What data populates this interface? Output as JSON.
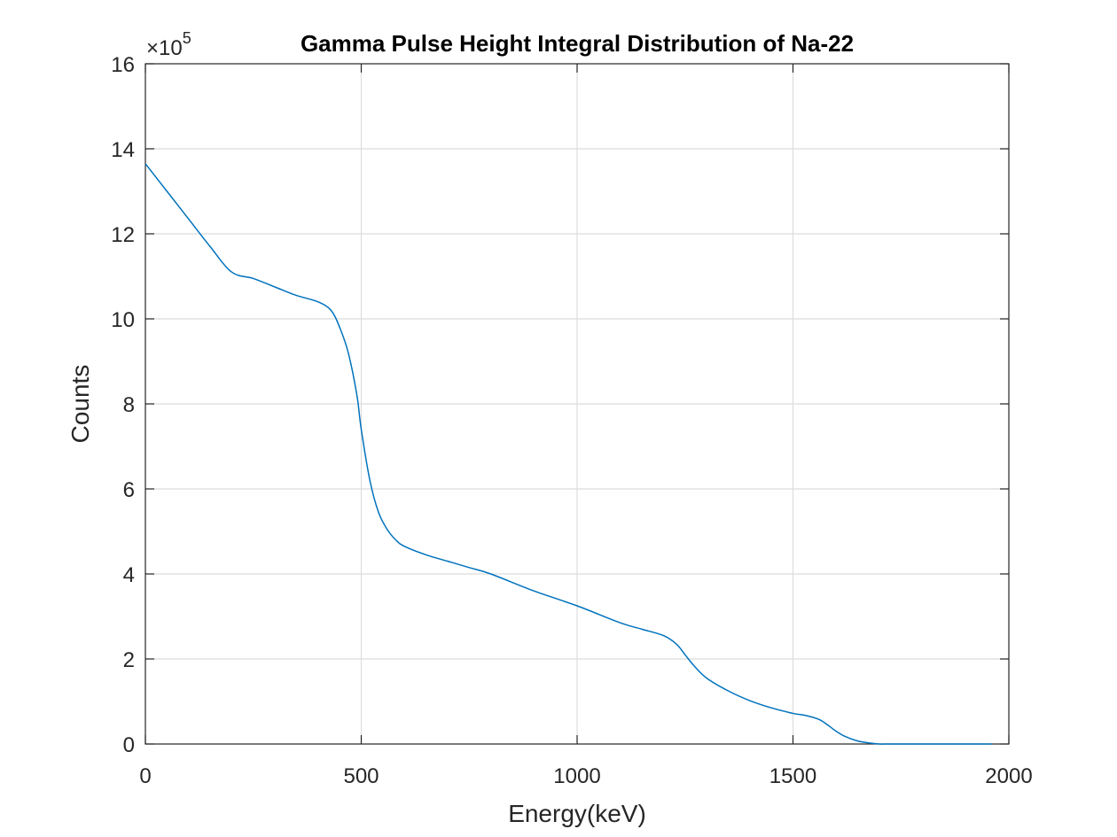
{
  "chart_data": {
    "type": "line",
    "title": "Gamma Pulse Height Integral Distribution of Na-22",
    "xlabel": "Energy(keV)",
    "ylabel": "Counts",
    "xlim": [
      0,
      2000
    ],
    "ylim": [
      0,
      16
    ],
    "y_multiplier_base": "×10",
    "y_multiplier_exponent": "5",
    "xticks": [
      "0",
      "500",
      "1000",
      "1500",
      "2000"
    ],
    "yticks": [
      "0",
      "2",
      "4",
      "6",
      "8",
      "10",
      "12",
      "14",
      "16"
    ],
    "grid": true,
    "line_color": "#0072BD",
    "series": [
      {
        "x": [
          0,
          50,
          100,
          150,
          200,
          250,
          300,
          350,
          400,
          430,
          450,
          470,
          490,
          500,
          520,
          540,
          560,
          580,
          600,
          650,
          700,
          750,
          800,
          900,
          1000,
          1100,
          1150,
          1200,
          1230,
          1250,
          1270,
          1300,
          1350,
          1400,
          1450,
          1500,
          1530,
          1560,
          1580,
          1600,
          1620,
          1650,
          1680,
          1700,
          1720,
          1750,
          1800,
          1900,
          1960
        ],
        "y": [
          13.65,
          13.0,
          12.35,
          11.7,
          11.1,
          10.95,
          10.75,
          10.55,
          10.4,
          10.2,
          9.8,
          9.2,
          8.2,
          7.4,
          6.2,
          5.45,
          5.05,
          4.8,
          4.65,
          4.45,
          4.3,
          4.15,
          4.0,
          3.6,
          3.25,
          2.85,
          2.7,
          2.55,
          2.35,
          2.1,
          1.85,
          1.55,
          1.25,
          1.02,
          0.85,
          0.72,
          0.67,
          0.58,
          0.45,
          0.3,
          0.18,
          0.07,
          0.02,
          0.0,
          0.0,
          0.0,
          0.0,
          0.0,
          0.0
        ]
      }
    ]
  }
}
